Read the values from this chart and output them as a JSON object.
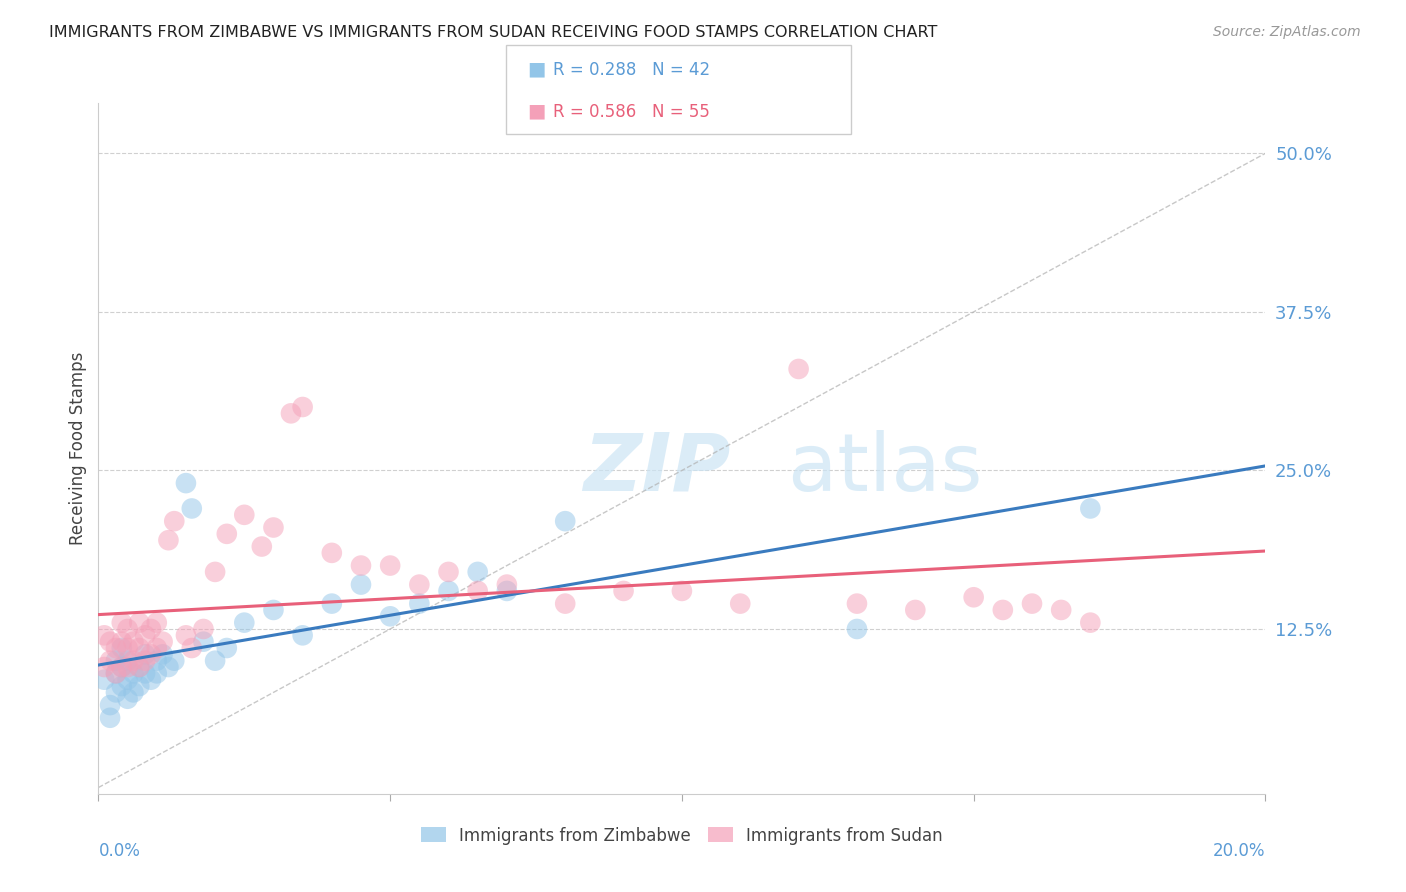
{
  "title": "IMMIGRANTS FROM ZIMBABWE VS IMMIGRANTS FROM SUDAN RECEIVING FOOD STAMPS CORRELATION CHART",
  "source": "Source: ZipAtlas.com",
  "ylabel": "Receiving Food Stamps",
  "ytick_values": [
    0.125,
    0.25,
    0.375,
    0.5
  ],
  "xlim": [
    0.0,
    0.2
  ],
  "ylim": [
    -0.005,
    0.54
  ],
  "legend_label_zimbabwe": "Immigrants from Zimbabwe",
  "legend_label_sudan": "Immigrants from Sudan",
  "color_zimbabwe": "#92c5e8",
  "color_sudan": "#f4a0b8",
  "color_line_zimbabwe": "#3a7bbf",
  "color_line_sudan": "#e8607a",
  "background_color": "#ffffff",
  "grid_color": "#d0d0d0",
  "R_zimbabwe": 0.288,
  "N_zimbabwe": 42,
  "R_sudan": 0.586,
  "N_sudan": 55,
  "zimbabwe_x": [
    0.001,
    0.002,
    0.002,
    0.003,
    0.003,
    0.003,
    0.004,
    0.004,
    0.004,
    0.005,
    0.005,
    0.005,
    0.006,
    0.006,
    0.007,
    0.007,
    0.008,
    0.008,
    0.009,
    0.01,
    0.01,
    0.011,
    0.012,
    0.013,
    0.015,
    0.016,
    0.018,
    0.02,
    0.022,
    0.025,
    0.03,
    0.035,
    0.04,
    0.045,
    0.05,
    0.055,
    0.06,
    0.065,
    0.07,
    0.08,
    0.13,
    0.17
  ],
  "zimbabwe_y": [
    0.085,
    0.055,
    0.065,
    0.075,
    0.09,
    0.1,
    0.08,
    0.095,
    0.11,
    0.07,
    0.085,
    0.1,
    0.075,
    0.09,
    0.08,
    0.095,
    0.09,
    0.105,
    0.085,
    0.09,
    0.1,
    0.105,
    0.095,
    0.1,
    0.24,
    0.22,
    0.115,
    0.1,
    0.11,
    0.13,
    0.14,
    0.12,
    0.145,
    0.16,
    0.135,
    0.145,
    0.155,
    0.17,
    0.155,
    0.21,
    0.125,
    0.22
  ],
  "sudan_x": [
    0.001,
    0.001,
    0.002,
    0.002,
    0.003,
    0.003,
    0.004,
    0.004,
    0.004,
    0.005,
    0.005,
    0.005,
    0.006,
    0.006,
    0.007,
    0.007,
    0.007,
    0.008,
    0.008,
    0.009,
    0.009,
    0.01,
    0.01,
    0.011,
    0.012,
    0.013,
    0.015,
    0.016,
    0.018,
    0.02,
    0.022,
    0.025,
    0.028,
    0.03,
    0.033,
    0.035,
    0.04,
    0.045,
    0.05,
    0.055,
    0.06,
    0.065,
    0.07,
    0.08,
    0.09,
    0.1,
    0.11,
    0.12,
    0.13,
    0.14,
    0.15,
    0.155,
    0.16,
    0.165,
    0.17
  ],
  "sudan_y": [
    0.095,
    0.12,
    0.1,
    0.115,
    0.09,
    0.11,
    0.095,
    0.115,
    0.13,
    0.095,
    0.11,
    0.125,
    0.1,
    0.115,
    0.095,
    0.11,
    0.13,
    0.1,
    0.12,
    0.105,
    0.125,
    0.11,
    0.13,
    0.115,
    0.195,
    0.21,
    0.12,
    0.11,
    0.125,
    0.17,
    0.2,
    0.215,
    0.19,
    0.205,
    0.295,
    0.3,
    0.185,
    0.175,
    0.175,
    0.16,
    0.17,
    0.155,
    0.16,
    0.145,
    0.155,
    0.155,
    0.145,
    0.33,
    0.145,
    0.14,
    0.15,
    0.14,
    0.145,
    0.14,
    0.13
  ]
}
